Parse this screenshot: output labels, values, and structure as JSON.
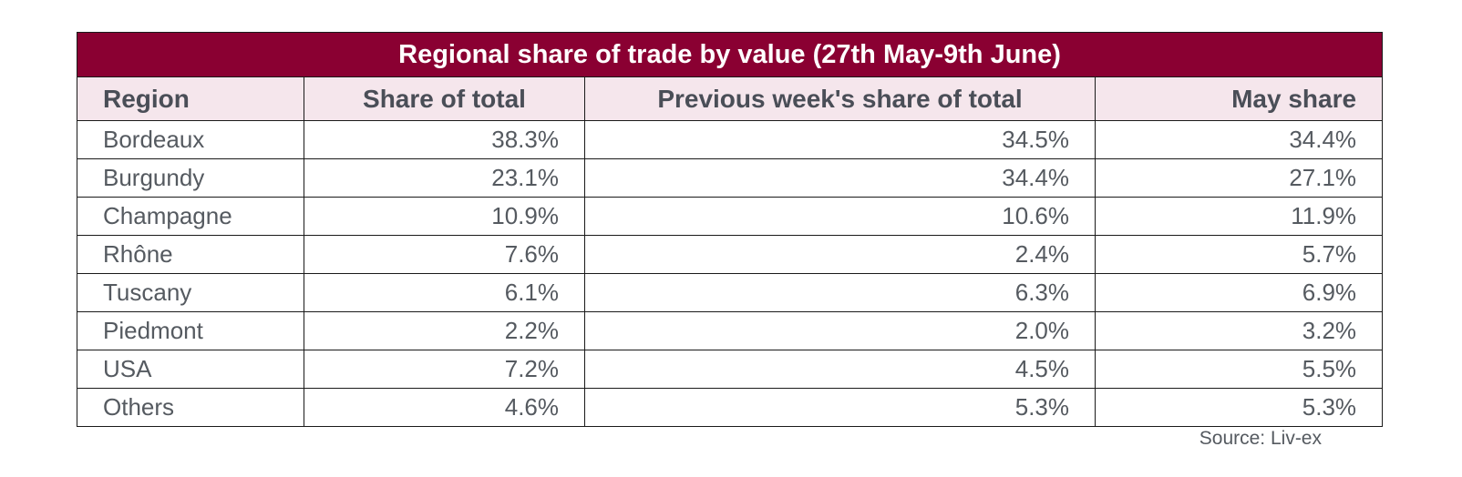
{
  "chart_data": {
    "type": "table",
    "title": "Regional share of trade by value (27th May-9th June)",
    "columns": [
      "Region",
      "Share of total",
      "Previous week's share of total",
      "May share"
    ],
    "rows": [
      [
        "Bordeaux",
        "38.3%",
        "34.5%",
        "34.4%"
      ],
      [
        "Burgundy",
        "23.1%",
        "34.4%",
        "27.1%"
      ],
      [
        "Champagne",
        "10.9%",
        "10.6%",
        "11.9%"
      ],
      [
        "Rhône",
        "7.6%",
        "2.4%",
        "5.7%"
      ],
      [
        "Tuscany",
        "6.1%",
        "6.3%",
        "6.9%"
      ],
      [
        "Piedmont",
        "2.2%",
        "2.0%",
        "3.2%"
      ],
      [
        "USA",
        "7.2%",
        "4.5%",
        "5.5%"
      ],
      [
        "Others",
        "4.6%",
        "5.3%",
        "5.3%"
      ]
    ],
    "source": "Source: Liv-ex"
  },
  "colors": {
    "title_background": "#8a0032",
    "header_background": "#f5e6ec",
    "text": "#555a60"
  }
}
